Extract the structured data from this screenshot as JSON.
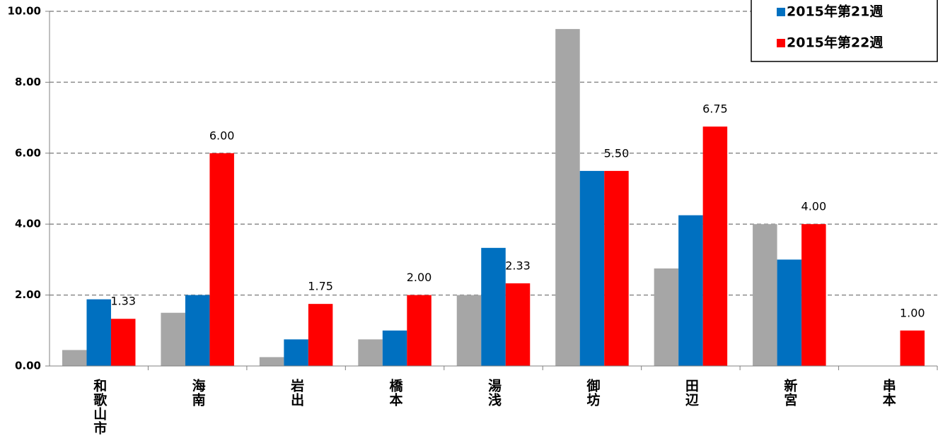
{
  "chart_data": {
    "type": "bar",
    "categories": [
      "和歌山市",
      "海南",
      "岩出",
      "橋本",
      "湯浅",
      "御坊",
      "田辺",
      "新宮",
      "串本"
    ],
    "series": [
      {
        "color": "#a6a6a6",
        "values": [
          0.45,
          1.5,
          0.25,
          0.75,
          2.0,
          9.5,
          2.75,
          4.0,
          0
        ]
      },
      {
        "name": "2015年第21週",
        "color": "#0070c0",
        "values": [
          1.88,
          2.0,
          0.75,
          1.0,
          3.33,
          5.5,
          4.25,
          3.0,
          0
        ]
      },
      {
        "name": "2015年第22週",
        "color": "#ff0000",
        "values": [
          1.33,
          6.0,
          1.75,
          2.0,
          2.33,
          5.5,
          6.75,
          4.0,
          1.0
        ],
        "value_labels": [
          "1.33",
          "6.00",
          "1.75",
          "2.00",
          "2.33",
          "5.50",
          "6.75",
          "4.00",
          "1.00"
        ]
      }
    ],
    "ylim": [
      0,
      10
    ],
    "yticks": [
      {
        "value": 0,
        "label": "0.00"
      },
      {
        "value": 2,
        "label": "2.00"
      },
      {
        "value": 4,
        "label": "4.00"
      },
      {
        "value": 6,
        "label": "6.00"
      },
      {
        "value": 8,
        "label": "8.00"
      },
      {
        "value": 10,
        "label": "10.00"
      }
    ],
    "grid": true,
    "legend": "top-right"
  }
}
